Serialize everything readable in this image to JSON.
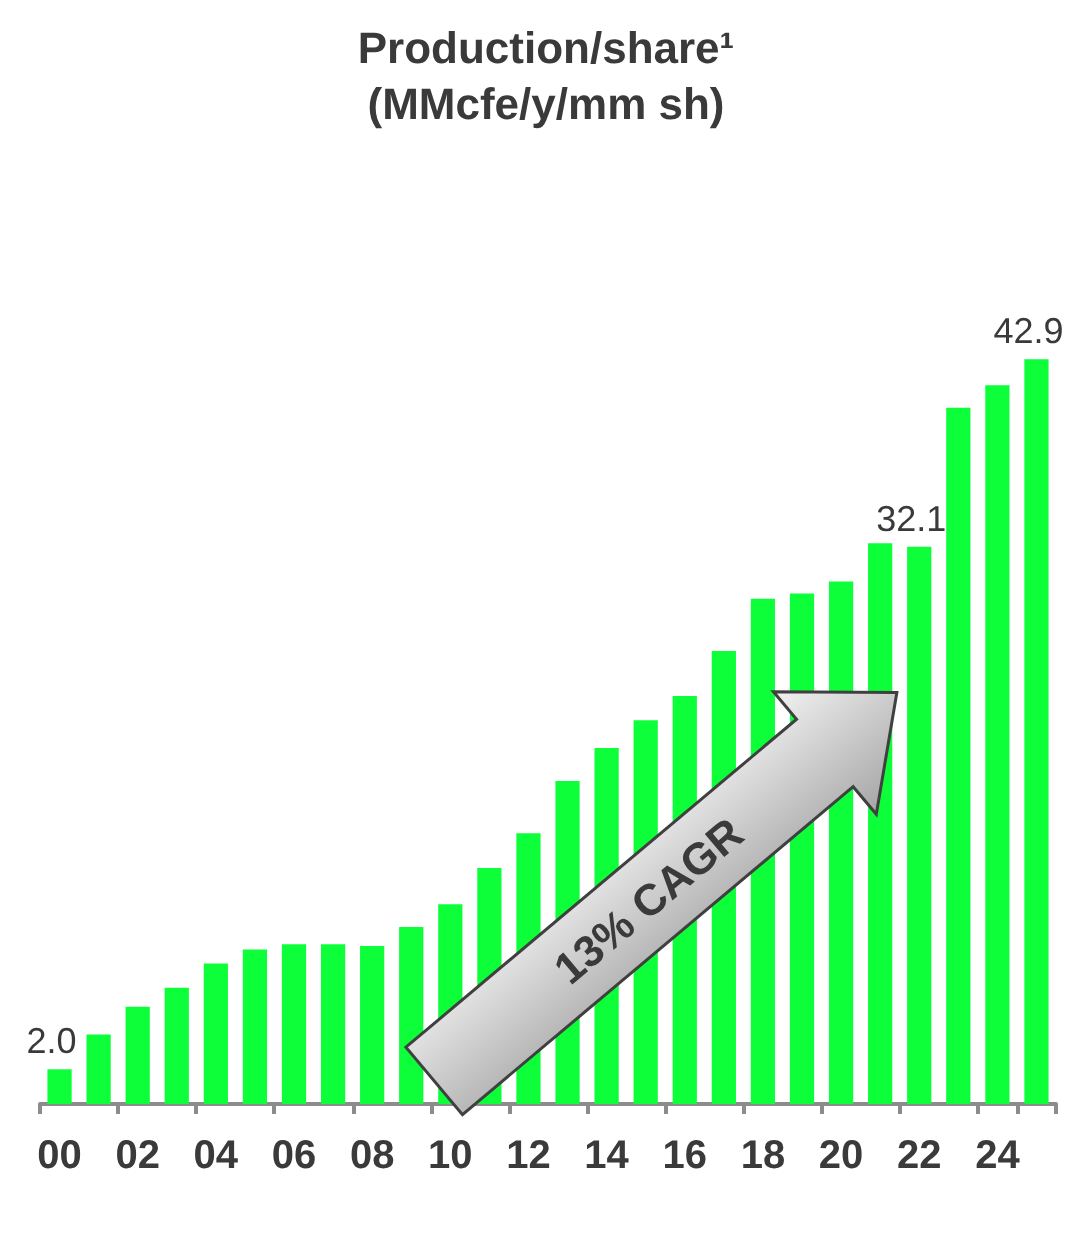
{
  "chart_data": {
    "type": "bar",
    "title": "Production/share¹",
    "subtitle": "(MMcfe/y/mm sh)",
    "categories": [
      "00",
      null,
      "02",
      null,
      "04",
      null,
      "06",
      null,
      "08",
      null,
      "10",
      null,
      "12",
      null,
      "14",
      null,
      "16",
      null,
      "18",
      null,
      "20",
      null,
      "22",
      null,
      "24",
      null
    ],
    "values": [
      2.0,
      4.0,
      5.6,
      6.7,
      8.1,
      8.9,
      9.2,
      9.2,
      9.1,
      10.2,
      11.5,
      13.6,
      15.6,
      18.6,
      20.5,
      22.1,
      23.5,
      26.1,
      29.1,
      29.4,
      30.1,
      32.3,
      32.1,
      40.1,
      41.4,
      42.9
    ],
    "value_labels": [
      "2.0",
      null,
      null,
      null,
      null,
      null,
      null,
      null,
      null,
      null,
      null,
      null,
      null,
      null,
      null,
      null,
      null,
      null,
      null,
      null,
      null,
      null,
      "32.1",
      null,
      null,
      "42.9"
    ],
    "color": "#0dff3a",
    "annotations": [
      "13% CAGR"
    ],
    "grid": false
  }
}
